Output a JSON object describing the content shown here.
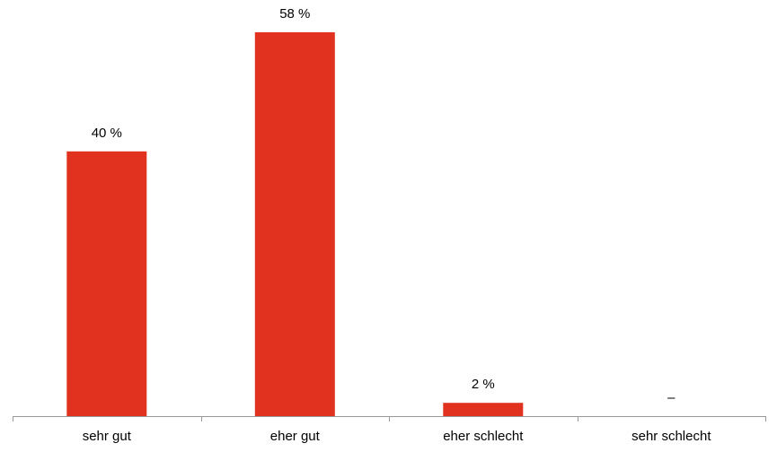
{
  "chart_data": {
    "type": "bar",
    "categories": [
      "sehr gut",
      "eher gut",
      "eher schlecht",
      "sehr schlecht"
    ],
    "values": [
      40,
      58,
      2,
      0
    ],
    "data_labels": [
      "40 %",
      "58 %",
      "2 %",
      "–"
    ],
    "bar_color": "#e0321e",
    "axis_color": "#999999",
    "text_color": "#000000",
    "ylim": [
      0,
      58
    ],
    "grid": false,
    "legend": "none"
  }
}
